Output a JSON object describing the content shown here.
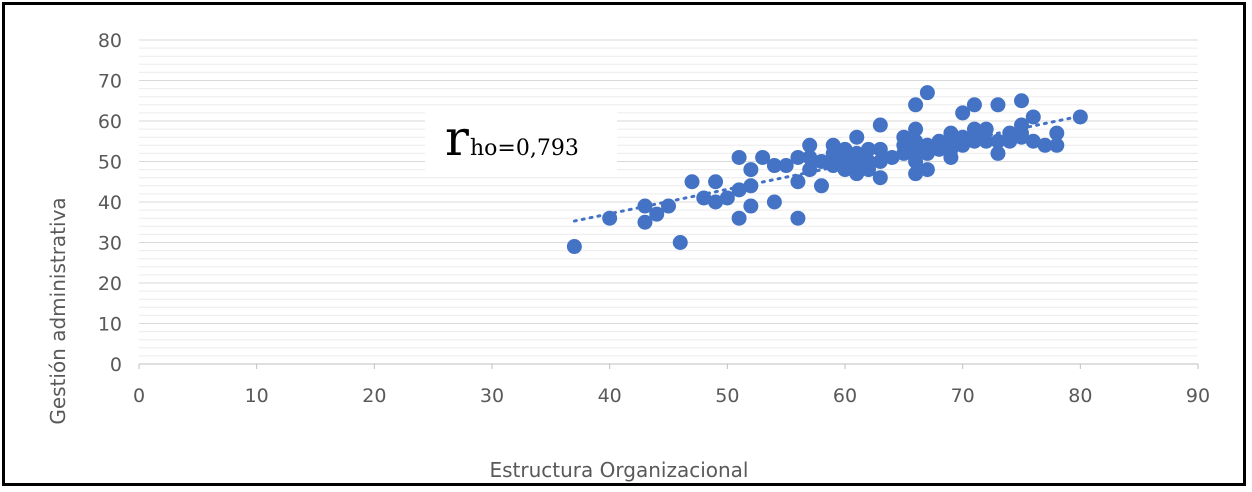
{
  "chart_data": {
    "type": "scatter",
    "xlabel": "Estructura Organizacional",
    "ylabel": "Gestión administrativa",
    "xlim": [
      0,
      90
    ],
    "ylim": [
      0,
      80
    ],
    "x_ticks": [
      "0",
      "10",
      "20",
      "30",
      "40",
      "50",
      "60",
      "70",
      "80",
      "90"
    ],
    "y_ticks": [
      "0",
      "10",
      "20",
      "30",
      "40",
      "50",
      "60",
      "70",
      "80"
    ],
    "grid": true,
    "marker_color": "#4472C4",
    "trendline": {
      "style": "dotted",
      "color": "#4472C4",
      "from": [
        37,
        35.3
      ],
      "to": [
        80,
        61.2
      ]
    },
    "annotation": {
      "main": "r",
      "sub": "ho=0,793"
    },
    "points": [
      {
        "x": 37,
        "y": 29
      },
      {
        "x": 40,
        "y": 36
      },
      {
        "x": 43,
        "y": 35
      },
      {
        "x": 43,
        "y": 39
      },
      {
        "x": 44,
        "y": 37
      },
      {
        "x": 45,
        "y": 39
      },
      {
        "x": 46,
        "y": 30
      },
      {
        "x": 47,
        "y": 45
      },
      {
        "x": 48,
        "y": 41
      },
      {
        "x": 49,
        "y": 45
      },
      {
        "x": 49,
        "y": 40
      },
      {
        "x": 50,
        "y": 41
      },
      {
        "x": 51,
        "y": 51
      },
      {
        "x": 51,
        "y": 43
      },
      {
        "x": 51,
        "y": 36
      },
      {
        "x": 52,
        "y": 48
      },
      {
        "x": 52,
        "y": 44
      },
      {
        "x": 52,
        "y": 39
      },
      {
        "x": 53,
        "y": 51
      },
      {
        "x": 54,
        "y": 49
      },
      {
        "x": 54,
        "y": 40
      },
      {
        "x": 55,
        "y": 49
      },
      {
        "x": 56,
        "y": 51
      },
      {
        "x": 56,
        "y": 45
      },
      {
        "x": 56,
        "y": 36
      },
      {
        "x": 57,
        "y": 54
      },
      {
        "x": 57,
        "y": 51
      },
      {
        "x": 57,
        "y": 48
      },
      {
        "x": 58,
        "y": 50
      },
      {
        "x": 58,
        "y": 44
      },
      {
        "x": 59,
        "y": 54
      },
      {
        "x": 59,
        "y": 52
      },
      {
        "x": 59,
        "y": 49
      },
      {
        "x": 60,
        "y": 53
      },
      {
        "x": 60,
        "y": 51
      },
      {
        "x": 60,
        "y": 48
      },
      {
        "x": 61,
        "y": 56
      },
      {
        "x": 61,
        "y": 52
      },
      {
        "x": 61,
        "y": 49
      },
      {
        "x": 61,
        "y": 47
      },
      {
        "x": 62,
        "y": 53
      },
      {
        "x": 62,
        "y": 50
      },
      {
        "x": 62,
        "y": 48
      },
      {
        "x": 63,
        "y": 59
      },
      {
        "x": 63,
        "y": 53
      },
      {
        "x": 63,
        "y": 50
      },
      {
        "x": 63,
        "y": 46
      },
      {
        "x": 64,
        "y": 51
      },
      {
        "x": 65,
        "y": 56
      },
      {
        "x": 65,
        "y": 54
      },
      {
        "x": 65,
        "y": 52
      },
      {
        "x": 66,
        "y": 64
      },
      {
        "x": 66,
        "y": 58
      },
      {
        "x": 66,
        "y": 55
      },
      {
        "x": 66,
        "y": 53
      },
      {
        "x": 66,
        "y": 50
      },
      {
        "x": 66,
        "y": 47
      },
      {
        "x": 67,
        "y": 67
      },
      {
        "x": 67,
        "y": 54
      },
      {
        "x": 67,
        "y": 52
      },
      {
        "x": 67,
        "y": 48
      },
      {
        "x": 68,
        "y": 55
      },
      {
        "x": 68,
        "y": 53
      },
      {
        "x": 69,
        "y": 57
      },
      {
        "x": 69,
        "y": 55
      },
      {
        "x": 69,
        "y": 53
      },
      {
        "x": 69,
        "y": 51
      },
      {
        "x": 70,
        "y": 62
      },
      {
        "x": 70,
        "y": 56
      },
      {
        "x": 70,
        "y": 54
      },
      {
        "x": 71,
        "y": 64
      },
      {
        "x": 71,
        "y": 58
      },
      {
        "x": 71,
        "y": 56
      },
      {
        "x": 71,
        "y": 55
      },
      {
        "x": 72,
        "y": 58
      },
      {
        "x": 72,
        "y": 55
      },
      {
        "x": 73,
        "y": 64
      },
      {
        "x": 73,
        "y": 55
      },
      {
        "x": 73,
        "y": 52
      },
      {
        "x": 74,
        "y": 57
      },
      {
        "x": 74,
        "y": 55
      },
      {
        "x": 75,
        "y": 65
      },
      {
        "x": 75,
        "y": 59
      },
      {
        "x": 75,
        "y": 57
      },
      {
        "x": 75,
        "y": 56
      },
      {
        "x": 76,
        "y": 61
      },
      {
        "x": 76,
        "y": 55
      },
      {
        "x": 77,
        "y": 54
      },
      {
        "x": 78,
        "y": 57
      },
      {
        "x": 78,
        "y": 54
      },
      {
        "x": 80,
        "y": 61
      }
    ]
  }
}
